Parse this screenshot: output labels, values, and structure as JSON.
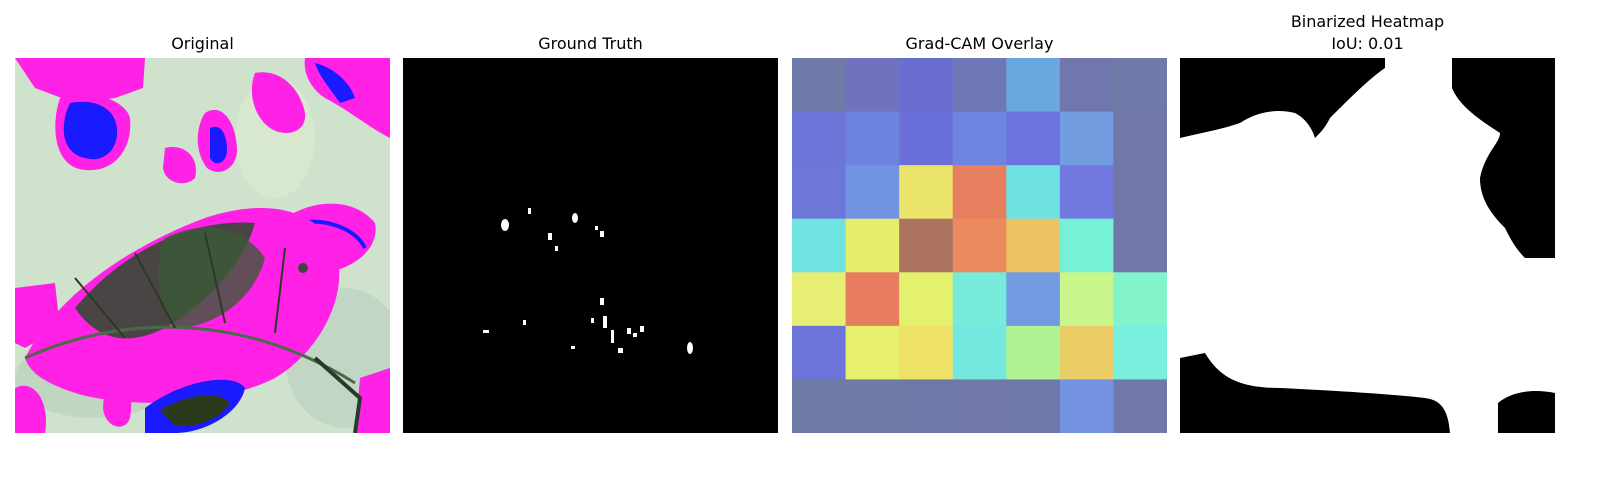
{
  "panels": [
    {
      "title": "Original"
    },
    {
      "title": "Ground Truth"
    },
    {
      "title": "Grad-CAM Overlay"
    },
    {
      "title_line1": "Binarized Heatmap",
      "title_line2": "IoU: 0.01"
    }
  ],
  "gradcam_grid": [
    [
      "#6f7aa9",
      "#6f73bf",
      "#6a6ed0",
      "#6f77b7",
      "#6aa7e0",
      "#6f77ac",
      "#6f7aa8"
    ],
    [
      "#6c74d8",
      "#6c83e0",
      "#6a6fd9",
      "#6d84e0",
      "#6e72df",
      "#719ce0",
      "#6f78a8"
    ],
    [
      "#6c77d8",
      "#7293e1",
      "#ebe46a",
      "#e7805f",
      "#6ee2e1",
      "#727ae2",
      "#6f78a8"
    ],
    [
      "#6ee3df",
      "#e8ee6a",
      "#ac7361",
      "#ec8a5f",
      "#ecc364",
      "#77f1d6",
      "#6f78a8"
    ],
    [
      "#e6ee74",
      "#e77c60",
      "#e4f16f",
      "#77ead9",
      "#719ae0",
      "#c9f68a",
      "#83f4c9"
    ],
    [
      "#6c74da",
      "#e6f06c",
      "#ede266",
      "#73e8df",
      "#aef494",
      "#eacd66",
      "#77efdc"
    ],
    [
      "#6f7aa6",
      "#6f79a6",
      "#6f79a7",
      "#6f78a9",
      "#6f79a8",
      "#7393e1",
      "#6f78a8"
    ]
  ],
  "colors": {
    "original_bg": "#cfe2cc",
    "magenta": "#ff22e6",
    "blue": "#1a1aff",
    "dark_green": "#2a4a28",
    "mask_white": "#ffffff",
    "mask_black": "#000000"
  }
}
